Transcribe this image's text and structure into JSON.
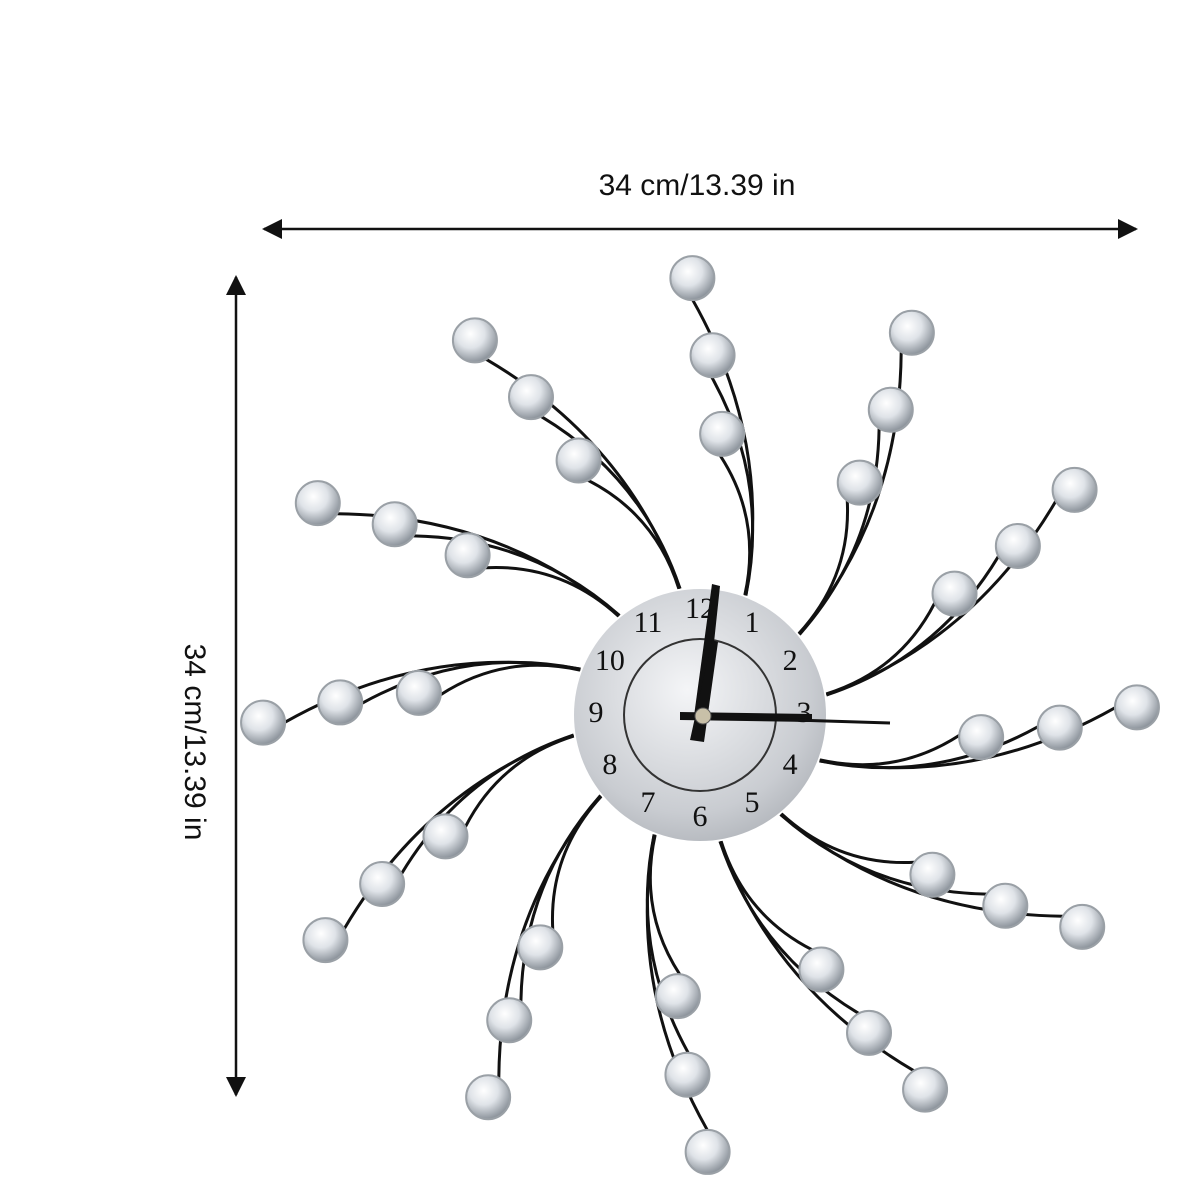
{
  "dimensions": {
    "width": "34 cm/13.39 in",
    "height": "34 cm/13.39 in"
  },
  "clock": {
    "numerals": [
      "1",
      "2",
      "3",
      "4",
      "5",
      "6",
      "7",
      "8",
      "9",
      "10",
      "11",
      "12"
    ]
  }
}
